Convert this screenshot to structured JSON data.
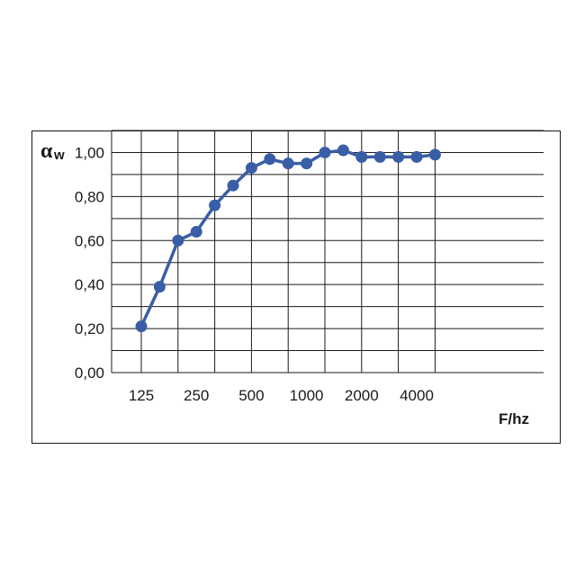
{
  "chart_data": {
    "type": "line",
    "ylabel": "α",
    "ylabel_sub": "w",
    "xlabel": "F/hz",
    "x": [
      125,
      160,
      200,
      250,
      315,
      400,
      500,
      630,
      800,
      1000,
      1250,
      1600,
      2000,
      2500,
      3150,
      4000,
      5000
    ],
    "series": [
      {
        "values": [
          0.21,
          0.39,
          0.6,
          0.64,
          0.76,
          0.85,
          0.93,
          0.97,
          0.95,
          0.95,
          1.0,
          1.01,
          0.98,
          0.98,
          0.98,
          0.98,
          0.99
        ]
      }
    ],
    "xticks": [
      "125",
      "250",
      "500",
      "1000",
      "2000",
      "4000"
    ],
    "yticks": [
      "0,00",
      "0,20",
      "0,40",
      "0,60",
      "0,80",
      "1,00"
    ],
    "ylim": [
      0,
      1.1
    ],
    "grid": true,
    "line_color": "#3a5ea6"
  }
}
